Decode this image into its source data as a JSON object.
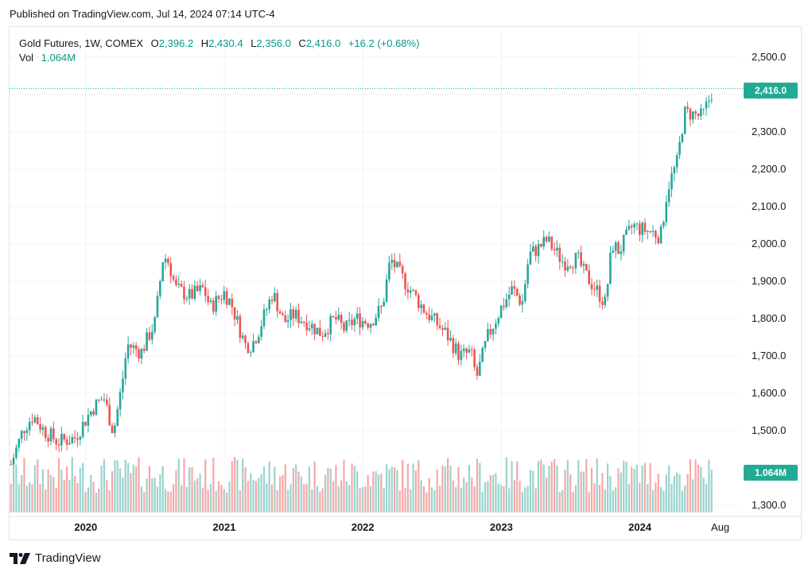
{
  "header": {
    "published": "Published on TradingView.com, Jul 14, 2024 07:14 UTC-4"
  },
  "legend": {
    "symbol": "Gold Futures, 1W, COMEX",
    "o_label": "O",
    "o_value": "2,396.2",
    "h_label": "H",
    "h_value": "2,430.4",
    "l_label": "L",
    "l_value": "2,356.0",
    "c_label": "C",
    "c_value": "2,416.0",
    "change": "+16.2 (+0.68%)",
    "vol_label": "Vol",
    "vol_value": "1.064M"
  },
  "price_tag": "2,416.0",
  "vol_tag": "1.064M",
  "brand": {
    "name": "TradingView"
  },
  "colors": {
    "up": "#26a69a",
    "down": "#ef5350",
    "up_vol": "#9bd3cd",
    "down_vol": "#f4a9a7",
    "grid": "#f0f3fa",
    "tag": "#22ab94"
  },
  "chart_data": {
    "type": "candlestick",
    "title": "Gold Futures, 1W, COMEX",
    "y_ticks": [
      "2,500.0",
      "2,400.0",
      "2,300.0",
      "2,200.0",
      "2,100.0",
      "2,000.0",
      "1,900.0",
      "1,800.0",
      "1,700.0",
      "1,600.0",
      "1,500.0",
      "1,300.0"
    ],
    "y_tick_values": [
      2500,
      2400,
      2300,
      2200,
      2100,
      2000,
      1900,
      1800,
      1700,
      1600,
      1500,
      1300
    ],
    "x_ticks": [
      "2020",
      "2021",
      "2022",
      "2023",
      "2024",
      "Aug"
    ],
    "x_tick_positions": [
      2020.0,
      2021.0,
      2022.0,
      2023.0,
      2024.0,
      2024.58
    ],
    "x_range": [
      2019.45,
      2024.72
    ],
    "y_range": [
      1270,
      2555
    ],
    "last_close": 2416.0,
    "last_volume": "1.064M",
    "series_anchors_t": [
      2019.46,
      2019.55,
      2019.62,
      2019.7,
      2019.8,
      2019.92,
      2020.05,
      2020.13,
      2020.2,
      2020.26,
      2020.3,
      2020.4,
      2020.5,
      2020.56,
      2020.6,
      2020.65,
      2020.75,
      2020.85,
      2020.9,
      2021.0,
      2021.05,
      2021.15,
      2021.2,
      2021.25,
      2021.35,
      2021.43,
      2021.5,
      2021.6,
      2021.7,
      2021.8,
      2021.87,
      2021.95,
      2022.05,
      2022.14,
      2022.2,
      2022.3,
      2022.45,
      2022.6,
      2022.7,
      2022.78,
      2022.82,
      2022.9,
      2023.0,
      2023.08,
      2023.15,
      2023.2,
      2023.27,
      2023.33,
      2023.45,
      2023.55,
      2023.6,
      2023.7,
      2023.75,
      2023.8,
      2023.85,
      2023.95,
      2024.0,
      2024.1,
      2024.15,
      2024.2,
      2024.27,
      2024.32,
      2024.36,
      2024.45,
      2024.53
    ],
    "series_anchors_close": [
      1410,
      1505,
      1540,
      1500,
      1470,
      1480,
      1560,
      1590,
      1495,
      1620,
      1730,
      1710,
      1790,
      1970,
      1950,
      1880,
      1860,
      1880,
      1830,
      1870,
      1840,
      1730,
      1730,
      1770,
      1870,
      1790,
      1810,
      1790,
      1760,
      1800,
      1770,
      1800,
      1790,
      1830,
      1960,
      1900,
      1820,
      1760,
      1700,
      1710,
      1640,
      1750,
      1830,
      1880,
      1840,
      1970,
      1990,
      2010,
      1950,
      1960,
      1920,
      1870,
      1840,
      2000,
      1980,
      2050,
      2040,
      2030,
      2020,
      2150,
      2220,
      2350,
      2350,
      2340,
      2416
    ],
    "volume_range": [
      0,
      2500000
    ]
  }
}
